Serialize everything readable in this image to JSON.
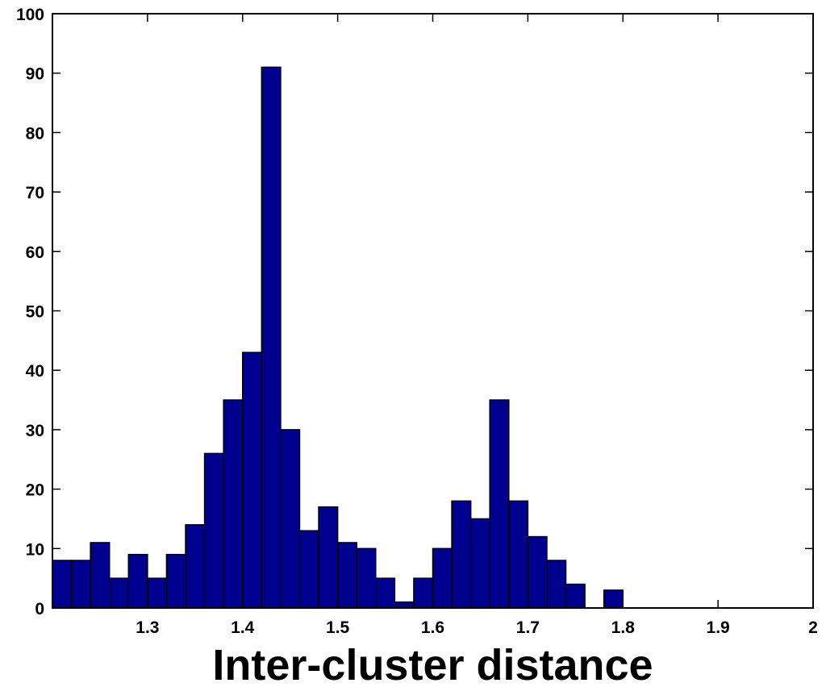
{
  "chart_data": {
    "type": "bar",
    "title": "",
    "xlabel": "Inter-cluster distance",
    "ylabel": "",
    "xlim": [
      1.2,
      2.0
    ],
    "ylim": [
      0,
      100
    ],
    "bin_width": 0.02,
    "bins": [
      {
        "x": 1.21,
        "value": 8
      },
      {
        "x": 1.23,
        "value": 8
      },
      {
        "x": 1.25,
        "value": 11
      },
      {
        "x": 1.27,
        "value": 5
      },
      {
        "x": 1.29,
        "value": 9
      },
      {
        "x": 1.31,
        "value": 5
      },
      {
        "x": 1.33,
        "value": 9
      },
      {
        "x": 1.35,
        "value": 14
      },
      {
        "x": 1.37,
        "value": 26
      },
      {
        "x": 1.39,
        "value": 35
      },
      {
        "x": 1.41,
        "value": 43
      },
      {
        "x": 1.43,
        "value": 91
      },
      {
        "x": 1.45,
        "value": 30
      },
      {
        "x": 1.47,
        "value": 13
      },
      {
        "x": 1.49,
        "value": 17
      },
      {
        "x": 1.51,
        "value": 11
      },
      {
        "x": 1.53,
        "value": 10
      },
      {
        "x": 1.55,
        "value": 5
      },
      {
        "x": 1.57,
        "value": 1
      },
      {
        "x": 1.59,
        "value": 5
      },
      {
        "x": 1.61,
        "value": 10
      },
      {
        "x": 1.63,
        "value": 18
      },
      {
        "x": 1.65,
        "value": 15
      },
      {
        "x": 1.67,
        "value": 35
      },
      {
        "x": 1.69,
        "value": 18
      },
      {
        "x": 1.71,
        "value": 12
      },
      {
        "x": 1.73,
        "value": 8
      },
      {
        "x": 1.75,
        "value": 4
      },
      {
        "x": 1.77,
        "value": 0
      },
      {
        "x": 1.79,
        "value": 3
      }
    ],
    "x_ticks": [
      "1.3",
      "1.4",
      "1.5",
      "1.6",
      "1.7",
      "1.8",
      "1.9",
      "2"
    ],
    "y_ticks": [
      "0",
      "10",
      "20",
      "30",
      "40",
      "50",
      "60",
      "70",
      "80",
      "90",
      "100"
    ],
    "bar_color": "#00008F",
    "grid": false,
    "legend": "none"
  }
}
